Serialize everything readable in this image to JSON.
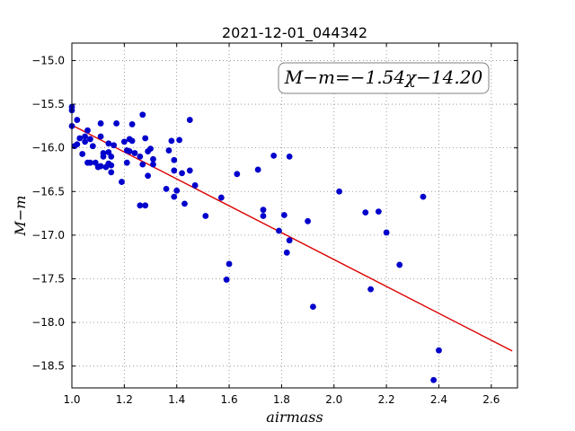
{
  "chart_data": {
    "type": "scatter",
    "title": "2021-12-01_044342",
    "xlabel": "airmass",
    "ylabel": "M−m",
    "xlim": [
      1.0,
      2.7
    ],
    "ylim": [
      -14.8,
      -18.75
    ],
    "y_inverted": true,
    "x_ticks": [
      "1.0",
      "1.2",
      "1.4",
      "1.6",
      "1.8",
      "2.0",
      "2.2",
      "2.4",
      "2.6"
    ],
    "y_ticks": [
      "−15.0",
      "−15.5",
      "−16.0",
      "−16.5",
      "−17.0",
      "−17.5",
      "−18.0",
      "−18.5"
    ],
    "grid": true,
    "annotation": "M−m=−1.54χ−14.20",
    "colors": {
      "points": "#0000cc",
      "fit": "#dd0000",
      "grid": "#888888"
    },
    "fit_line": {
      "slope": -1.54,
      "intercept": -14.2,
      "x_range": [
        1.0,
        2.68
      ]
    },
    "points": [
      [
        1.0,
        -15.53
      ],
      [
        1.0,
        -15.57
      ],
      [
        1.0,
        -15.75
      ],
      [
        1.01,
        -15.98
      ],
      [
        1.02,
        -15.68
      ],
      [
        1.02,
        -15.96
      ],
      [
        1.03,
        -15.89
      ],
      [
        1.04,
        -16.07
      ],
      [
        1.05,
        -15.87
      ],
      [
        1.05,
        -15.93
      ],
      [
        1.06,
        -16.17
      ],
      [
        1.06,
        -15.8
      ],
      [
        1.07,
        -15.9
      ],
      [
        1.07,
        -16.17
      ],
      [
        1.08,
        -15.98
      ],
      [
        1.09,
        -16.17
      ],
      [
        1.1,
        -16.22
      ],
      [
        1.11,
        -15.72
      ],
      [
        1.11,
        -15.87
      ],
      [
        1.11,
        -16.21
      ],
      [
        1.12,
        -16.06
      ],
      [
        1.12,
        -16.1
      ],
      [
        1.13,
        -16.22
      ],
      [
        1.14,
        -15.95
      ],
      [
        1.14,
        -16.18
      ],
      [
        1.14,
        -16.05
      ],
      [
        1.15,
        -16.28
      ],
      [
        1.15,
        -16.2
      ],
      [
        1.15,
        -16.1
      ],
      [
        1.16,
        -15.97
      ],
      [
        1.17,
        -15.72
      ],
      [
        1.19,
        -16.39
      ],
      [
        1.2,
        -15.93
      ],
      [
        1.21,
        -16.17
      ],
      [
        1.21,
        -16.03
      ],
      [
        1.22,
        -15.9
      ],
      [
        1.22,
        -16.04
      ],
      [
        1.23,
        -15.92
      ],
      [
        1.23,
        -15.73
      ],
      [
        1.24,
        -16.06
      ],
      [
        1.26,
        -16.66
      ],
      [
        1.26,
        -16.1
      ],
      [
        1.27,
        -16.19
      ],
      [
        1.27,
        -15.62
      ],
      [
        1.28,
        -16.66
      ],
      [
        1.28,
        -15.89
      ],
      [
        1.29,
        -16.04
      ],
      [
        1.29,
        -16.32
      ],
      [
        1.3,
        -16.01
      ],
      [
        1.31,
        -16.13
      ],
      [
        1.31,
        -16.19
      ],
      [
        1.36,
        -16.47
      ],
      [
        1.37,
        -16.03
      ],
      [
        1.38,
        -15.92
      ],
      [
        1.39,
        -16.14
      ],
      [
        1.39,
        -16.26
      ],
      [
        1.39,
        -16.56
      ],
      [
        1.4,
        -16.49
      ],
      [
        1.41,
        -15.91
      ],
      [
        1.42,
        -16.29
      ],
      [
        1.43,
        -16.64
      ],
      [
        1.45,
        -15.68
      ],
      [
        1.45,
        -16.26
      ],
      [
        1.47,
        -16.43
      ],
      [
        1.51,
        -16.78
      ],
      [
        1.57,
        -16.57
      ],
      [
        1.59,
        -17.51
      ],
      [
        1.6,
        -17.33
      ],
      [
        1.63,
        -16.3
      ],
      [
        1.71,
        -16.25
      ],
      [
        1.73,
        -16.71
      ],
      [
        1.73,
        -16.78
      ],
      [
        1.77,
        -16.09
      ],
      [
        1.79,
        -16.95
      ],
      [
        1.81,
        -16.77
      ],
      [
        1.82,
        -17.2
      ],
      [
        1.83,
        -17.06
      ],
      [
        1.83,
        -16.1
      ],
      [
        1.9,
        -16.84
      ],
      [
        1.92,
        -17.82
      ],
      [
        2.02,
        -16.5
      ],
      [
        2.12,
        -16.74
      ],
      [
        2.14,
        -17.62
      ],
      [
        2.17,
        -16.73
      ],
      [
        2.2,
        -16.97
      ],
      [
        2.25,
        -17.34
      ],
      [
        2.34,
        -16.56
      ],
      [
        2.38,
        -18.66
      ],
      [
        2.4,
        -18.32
      ]
    ]
  }
}
